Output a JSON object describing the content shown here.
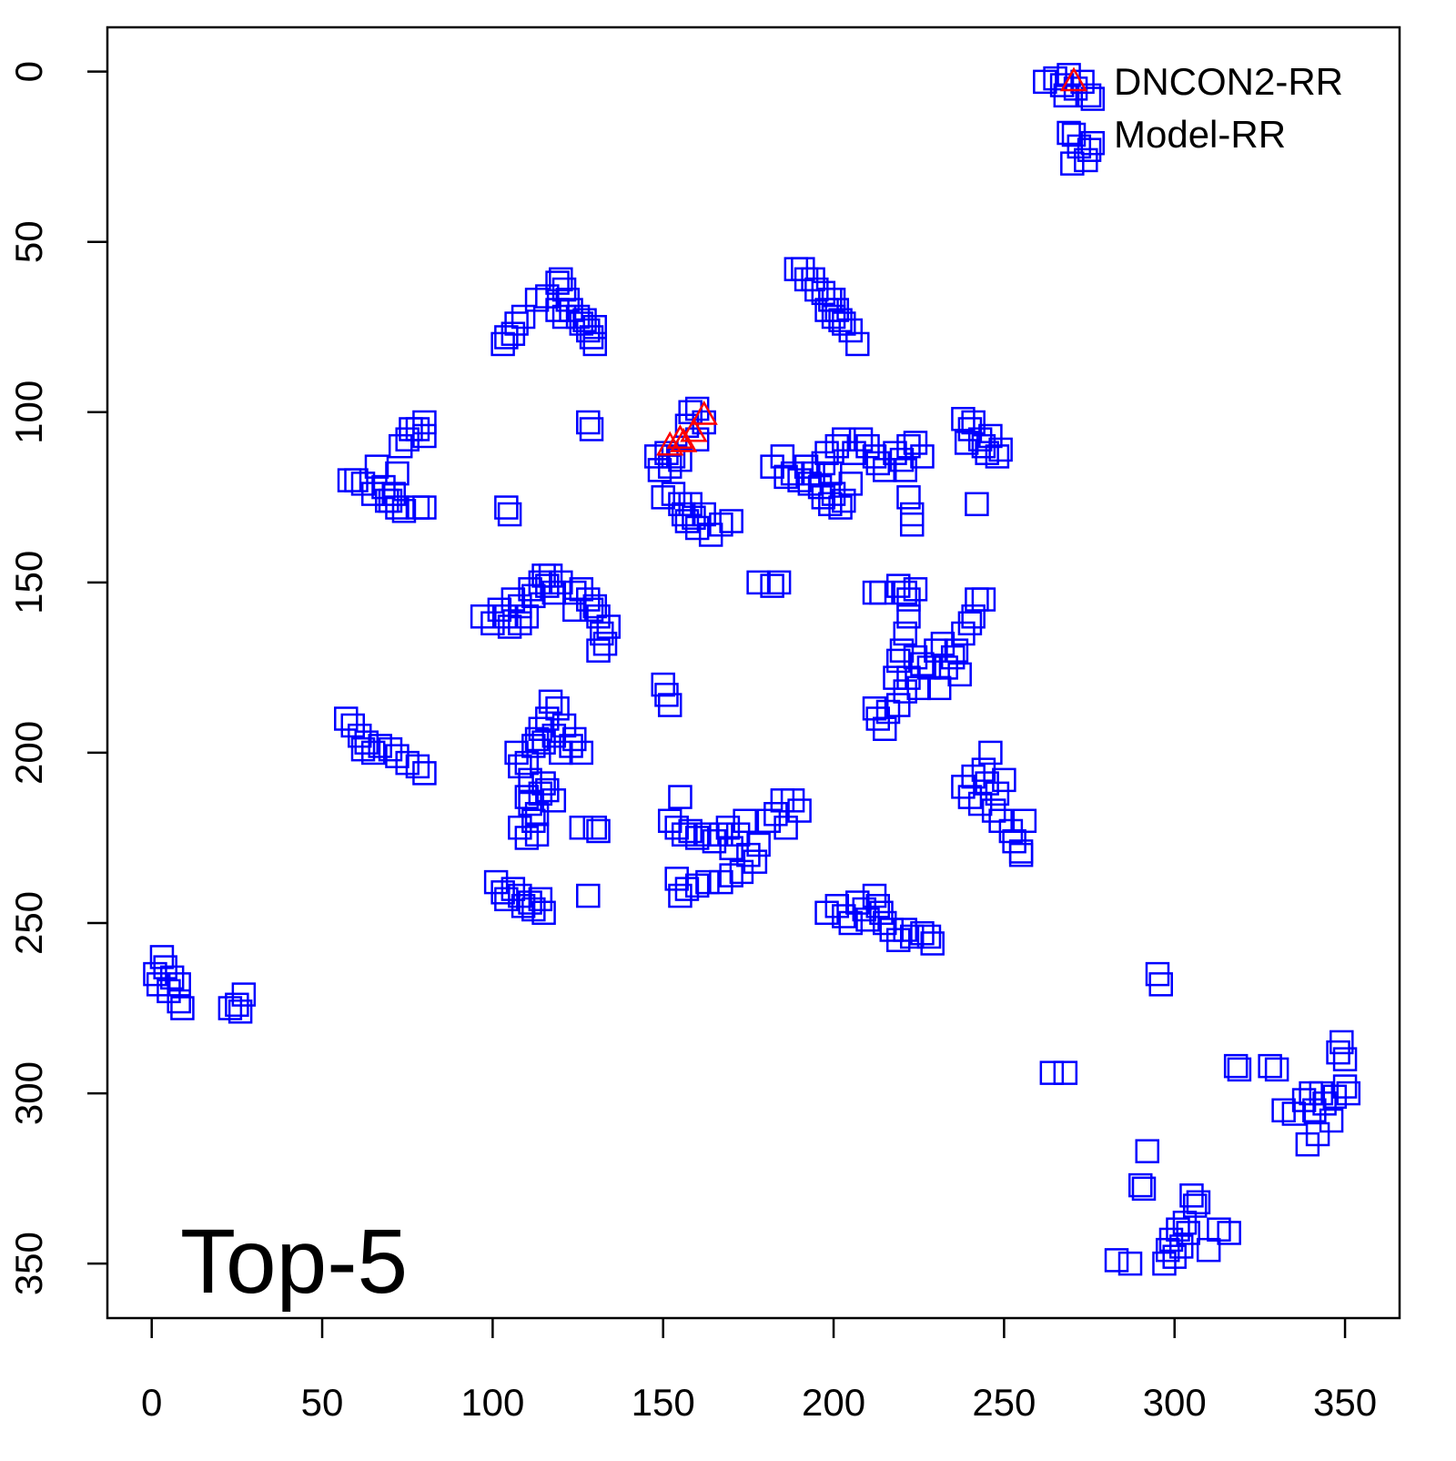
{
  "chart_data": {
    "type": "scatter",
    "annotation": "Top-5",
    "xlim": [
      -13,
      366
    ],
    "ylim": [
      366,
      -13
    ],
    "xticks": [
      0,
      50,
      100,
      150,
      200,
      250,
      300,
      350
    ],
    "yticks": [
      0,
      50,
      100,
      150,
      200,
      250,
      300,
      350
    ],
    "legend": "topright",
    "series": [
      {
        "name": "DNCON2-RR",
        "color": "#ff0000",
        "marker": "triangle",
        "x": [
          152,
          155,
          156,
          159,
          162
        ],
        "y": [
          110,
          108,
          109,
          106,
          101
        ]
      },
      {
        "name": "Model-RR",
        "color": "#0000ff",
        "marker": "square",
        "x": [
          262,
          265,
          267,
          269,
          271,
          273,
          275,
          276,
          268,
          269,
          272,
          274,
          275,
          276,
          270,
          103,
          104,
          106,
          107,
          109,
          113,
          116,
          119,
          120,
          121,
          122,
          123,
          125,
          126,
          127,
          128,
          129,
          130,
          130,
          119,
          121,
          128,
          129,
          189,
          191,
          192,
          194,
          195,
          197,
          199,
          200,
          201,
          202,
          203,
          205,
          207,
          198,
          200,
          58,
          60,
          62,
          65,
          66,
          68,
          70,
          72,
          72,
          73,
          75,
          76,
          78,
          80,
          80,
          74,
          78,
          80,
          71,
          69,
          104,
          105,
          148,
          149,
          151,
          152,
          153,
          155,
          157,
          158,
          160,
          162,
          160,
          150,
          153,
          155,
          156,
          157,
          159,
          160,
          162,
          164,
          167,
          170,
          158,
          182,
          185,
          186,
          188,
          190,
          192,
          194,
          196,
          197,
          198,
          199,
          200,
          201,
          203,
          203,
          205,
          206,
          202,
          193,
          197,
          199,
          208,
          210,
          212,
          213,
          215,
          218,
          220,
          222,
          224,
          226,
          222,
          223,
          223,
          221,
          238,
          240,
          241,
          243,
          244,
          245,
          246,
          248,
          249,
          242,
          239,
          97,
          100,
          102,
          104,
          106,
          108,
          110,
          111,
          112,
          114,
          115,
          116,
          117,
          118,
          120,
          124,
          126,
          128,
          129,
          130,
          131,
          132,
          133,
          134,
          131,
          124,
          108,
          105,
          178,
          182,
          184,
          212,
          214,
          219,
          221,
          222,
          224,
          222,
          221,
          220,
          219,
          218,
          222,
          224,
          226,
          228,
          230,
          232,
          233,
          235,
          236,
          238,
          240,
          241,
          242,
          244,
          237,
          231,
          225,
          221,
          219,
          216,
          212,
          213,
          215,
          150,
          151,
          152,
          57,
          59,
          61,
          63,
          65,
          67,
          70,
          72,
          75,
          78,
          80,
          62,
          107,
          108,
          110,
          111,
          112,
          113,
          114,
          115,
          116,
          117,
          118,
          119,
          120,
          121,
          123,
          124,
          126,
          110,
          111,
          112,
          113,
          114,
          115,
          116,
          118,
          108,
          110,
          113,
          126,
          130,
          131,
          152,
          154,
          156,
          158,
          155,
          160,
          163,
          165,
          167,
          169,
          170,
          172,
          174,
          175,
          173,
          170,
          167,
          163,
          160,
          157,
          155,
          154,
          177,
          178,
          181,
          183,
          185,
          188,
          190,
          186,
          101,
          103,
          104,
          106,
          108,
          109,
          111,
          112,
          114,
          115,
          128,
          238,
          240,
          241,
          243,
          244,
          245,
          246,
          247,
          248,
          249,
          250,
          252,
          253,
          255,
          256,
          255,
          198,
          201,
          203,
          205,
          207,
          209,
          210,
          212,
          213,
          214,
          215,
          217,
          219,
          221,
          223,
          226,
          228,
          229,
          1,
          2,
          3,
          4,
          5,
          6,
          8,
          8,
          9,
          23,
          25,
          27,
          26,
          295,
          296,
          264,
          268,
          283,
          287,
          290,
          291,
          292,
          297,
          298,
          299,
          300,
          301,
          302,
          303,
          304,
          305,
          306,
          307,
          310,
          313,
          316,
          318,
          319,
          328,
          330,
          332,
          335,
          338,
          339,
          340,
          341,
          342,
          343,
          344,
          346,
          347,
          348,
          349,
          350,
          350,
          351
        ],
        "y": [
          3,
          2,
          4,
          1,
          5,
          3,
          7,
          8,
          7,
          18,
          22,
          26,
          23,
          21,
          27,
          80,
          78,
          77,
          74,
          72,
          67,
          66,
          62,
          61,
          64,
          67,
          70,
          72,
          74,
          73,
          76,
          78,
          80,
          75,
          70,
          72,
          103,
          105,
          58,
          58,
          61,
          61,
          64,
          65,
          67,
          67,
          70,
          73,
          74,
          76,
          80,
          70,
          72,
          120,
          120,
          121,
          124,
          116,
          122,
          126,
          118,
          128,
          110,
          108,
          105,
          105,
          107,
          103,
          129,
          128,
          128,
          124,
          126,
          128,
          130,
          113,
          117,
          112,
          116,
          113,
          114,
          104,
          100,
          99,
          103,
          108,
          125,
          124,
          127,
          130,
          132,
          131,
          134,
          130,
          136,
          133,
          132,
          127,
          116,
          113,
          119,
          118,
          120,
          116,
          118,
          122,
          115,
          112,
          118,
          124,
          110,
          108,
          126,
          121,
          112,
          128,
          121,
          125,
          127,
          108,
          110,
          113,
          115,
          117,
          112,
          114,
          110,
          109,
          113,
          125,
          130,
          133,
          117,
          102,
          105,
          103,
          108,
          110,
          112,
          107,
          113,
          111,
          127,
          109,
          160,
          162,
          158,
          160,
          155,
          157,
          160,
          152,
          154,
          150,
          148,
          151,
          148,
          153,
          150,
          153,
          152,
          155,
          158,
          157,
          160,
          165,
          168,
          163,
          170,
          158,
          162,
          163,
          150,
          151,
          150,
          153,
          153,
          151,
          153,
          155,
          152,
          160,
          165,
          170,
          173,
          178,
          178,
          172,
          174,
          175,
          170,
          168,
          175,
          172,
          170,
          165,
          162,
          160,
          155,
          155,
          177,
          181,
          181,
          182,
          186,
          188,
          187,
          190,
          193,
          180,
          183,
          186,
          190,
          192,
          195,
          197,
          200,
          198,
          199,
          201,
          203,
          204,
          206,
          199,
          200,
          204,
          203,
          208,
          198,
          196,
          193,
          197,
          190,
          185,
          195,
          187,
          200,
          192,
          198,
          196,
          200,
          213,
          215,
          220,
          218,
          212,
          209,
          211,
          214,
          222,
          225,
          224,
          222,
          222,
          223,
          220,
          222,
          224,
          223,
          213,
          225,
          224,
          226,
          224,
          222,
          228,
          224,
          220,
          230,
          235,
          236,
          238,
          238,
          239,
          240,
          242,
          237,
          232,
          227,
          220,
          218,
          214,
          214,
          217,
          222,
          238,
          241,
          243,
          240,
          242,
          245,
          244,
          246,
          243,
          247,
          242,
          210,
          213,
          207,
          215,
          205,
          209,
          200,
          217,
          212,
          220,
          208,
          223,
          226,
          229,
          220,
          230,
          247,
          245,
          248,
          250,
          244,
          246,
          249,
          242,
          245,
          247,
          250,
          252,
          255,
          252,
          254,
          253,
          254,
          256,
          265,
          268,
          260,
          263,
          270,
          266,
          268,
          273,
          275,
          275,
          274,
          271,
          276,
          265,
          268,
          294,
          294,
          349,
          350,
          327,
          328,
          317,
          350,
          346,
          343,
          348,
          340,
          345,
          338,
          341,
          330,
          333,
          332,
          346,
          340,
          341,
          292,
          293,
          292,
          293,
          305,
          306,
          302,
          315,
          300,
          305,
          312,
          300,
          303,
          308,
          301,
          288,
          285,
          290,
          298,
          300
        ]
      }
    ]
  }
}
